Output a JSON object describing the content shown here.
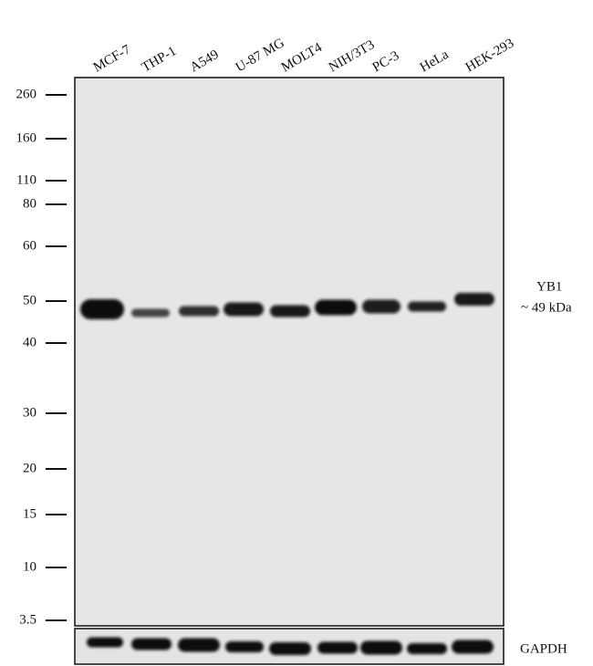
{
  "lanes": [
    "MCF-7",
    "THP-1",
    "A549",
    "U-87 MG",
    "MOLT4",
    "NIH/3T3",
    "PC-3",
    "HeLa",
    "HEK-293"
  ],
  "markers": [
    "260",
    "160",
    "110",
    "80",
    "60",
    "50",
    "40",
    "30",
    "20",
    "15",
    "10",
    "3.5"
  ],
  "target": {
    "name": "YB1",
    "size": "~ 49 kDa"
  },
  "loading_control": "GAPDH"
}
